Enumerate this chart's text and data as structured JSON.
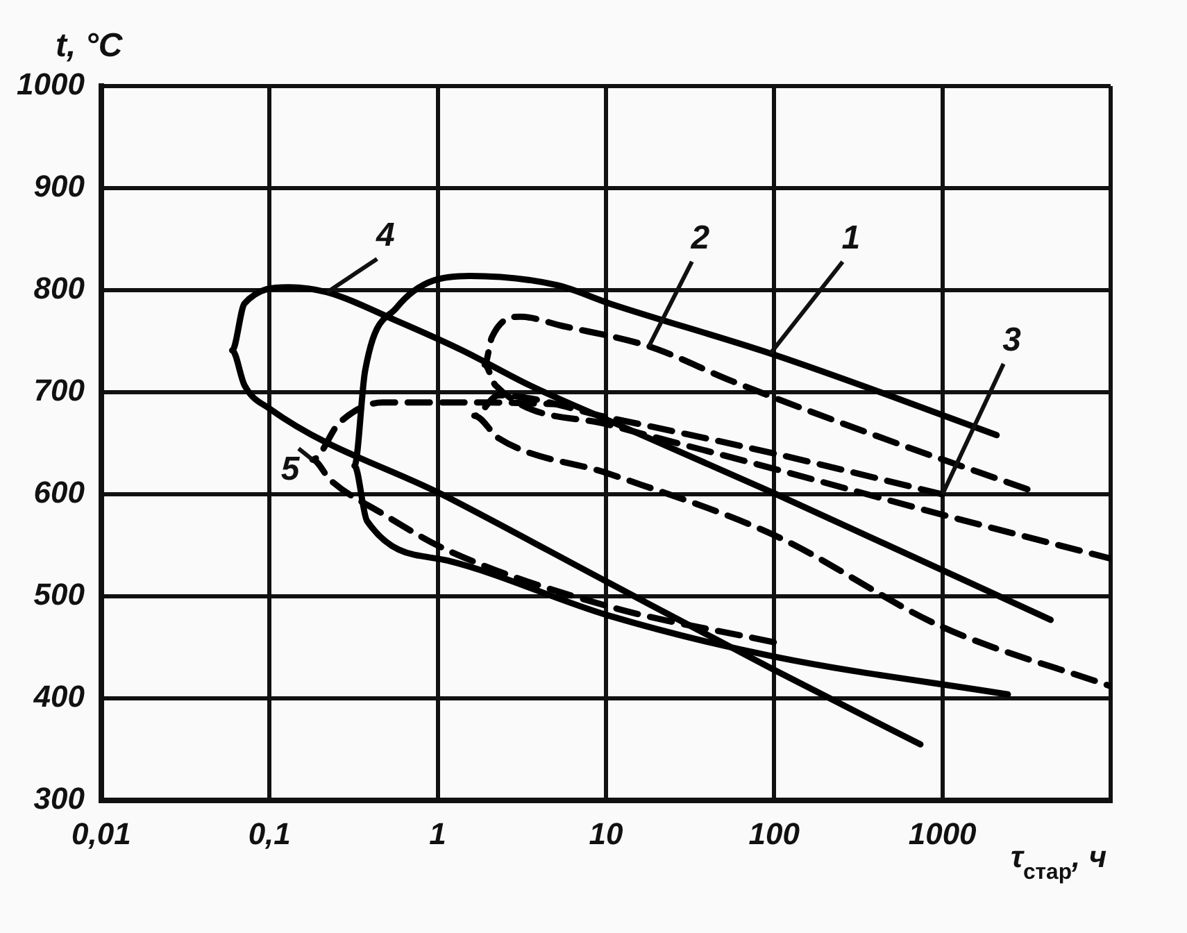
{
  "chart_data": {
    "type": "line",
    "xlabel": "τ$_{стар}$, ч",
    "ylabel": "t, °C",
    "log": "x",
    "grid": true,
    "legend": false,
    "marker": "none",
    "xlim": [
      0.01,
      10000
    ],
    "ylim": [
      300,
      1000
    ],
    "xticks": [
      {
        "value": 0.01,
        "label": "0,01"
      },
      {
        "value": 0.1,
        "label": "0,1"
      },
      1,
      10,
      100,
      1000,
      {
        "value": 10000,
        "label": null
      }
    ],
    "yticks": [
      300,
      400,
      500,
      600,
      700,
      800,
      900,
      1000
    ],
    "series": [
      {
        "name": "1",
        "color": "#000000",
        "line_style": "solid",
        "x": [
          2100,
          540,
          95,
          10.5,
          5.1,
          1.55,
          0.57,
          0.37,
          0.32,
          0.38,
          1.15,
          10.5,
          100,
          2450
        ],
        "values": [
          658,
          694,
          738,
          787,
          805,
          814,
          783,
          721,
          628,
          574,
          535,
          481,
          441,
          404
        ]
      },
      {
        "name": "2",
        "color": "#000000",
        "line_style": "dashed",
        "x": [
          3200,
          410,
          56,
          18,
          5.5,
          3.1,
          2.1,
          1.9,
          2.2,
          10.5,
          100,
          1000,
          10000
        ],
        "values": [
          605,
          657,
          711,
          745,
          765,
          774,
          754,
          727,
          707,
          668,
          625,
          580,
          537
        ]
      },
      {
        "name": "3",
        "color": "#000000",
        "line_style": "dashed",
        "x": [
          1000,
          100,
          10.5,
          2.3,
          1.65,
          2.3,
          10.5,
          100,
          1000,
          10000
        ],
        "values": [
          600,
          640,
          675,
          697,
          677,
          655,
          620,
          560,
          470,
          412
        ]
      },
      {
        "name": "4",
        "color": "#000000",
        "line_style": "solid",
        "x": [
          4400,
          100,
          10.5,
          3.5,
          1.4,
          0.57,
          0.22,
          0.13,
          0.071,
          0.06,
          0.071,
          0.1,
          1.15,
          10.5,
          100,
          740
        ],
        "values": [
          477,
          601,
          672,
          707,
          741,
          770,
          798,
          803,
          787,
          741,
          707,
          684,
          597,
          513,
          428,
          355
        ]
      },
      {
        "name": "5",
        "color": "#000000",
        "line_style": "dashed",
        "x": [
          6,
          2,
          0.47,
          0.26,
          0.18,
          0.23,
          0.47,
          1.15,
          10.5,
          100
        ],
        "values": [
          688,
          690,
          690,
          670,
          634,
          614,
          581,
          545,
          490,
          455
        ]
      }
    ]
  }
}
